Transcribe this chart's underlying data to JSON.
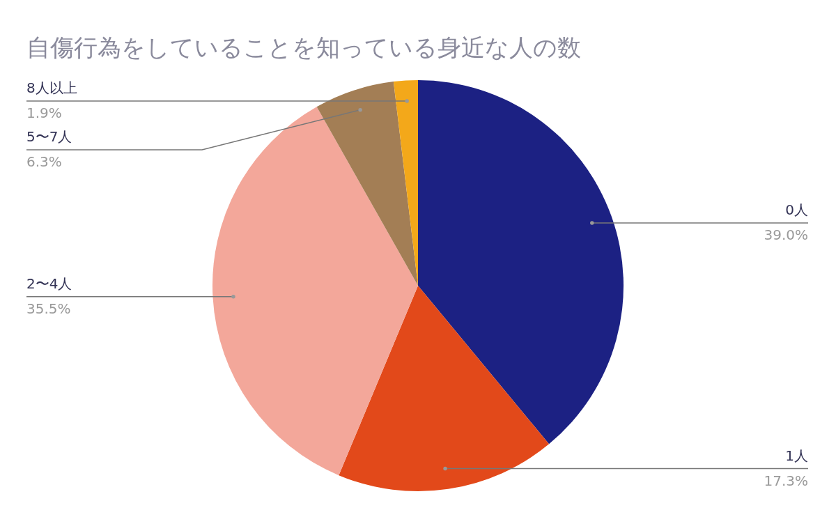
{
  "chart_data": {
    "type": "pie",
    "title": "自傷行為をしていることを知っている身近な人の数",
    "categories": [
      "0人",
      "1人",
      "2〜4人",
      "5〜7人",
      "8人以上"
    ],
    "values": [
      39.0,
      17.3,
      35.5,
      6.3,
      1.9
    ],
    "value_labels": [
      "39.0%",
      "17.3%",
      "35.5%",
      "6.3%",
      "1.9%"
    ],
    "colors": [
      "#1c2183",
      "#e2491a",
      "#f3a79a",
      "#a37e55",
      "#f3a81a"
    ]
  }
}
